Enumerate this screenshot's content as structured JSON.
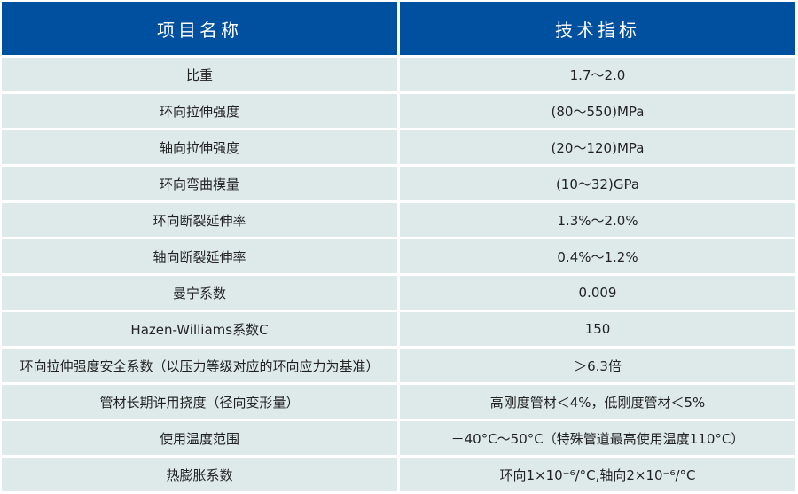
{
  "header": {
    "col1": "项目名称",
    "col2": "技术指标"
  },
  "rows": [
    {
      "name": "比重",
      "value": "1.7～2.0"
    },
    {
      "name": "环向拉伸强度",
      "value": "(80～550)MPa"
    },
    {
      "name": "轴向拉伸强度",
      "value": "(20～120)MPa"
    },
    {
      "name": "环向弯曲模量",
      "value": "(10～32)GPa"
    },
    {
      "name": "环向断裂延伸率",
      "value": "1.3%～2.0%"
    },
    {
      "name": "轴向断裂延伸率",
      "value": "0.4%～1.2%"
    },
    {
      "name": "曼宁系数",
      "value": "0.009"
    },
    {
      "name": "Hazen-Williams系数C",
      "value": "150"
    },
    {
      "name": "环向拉伸强度安全系数（以压力等级对应的环向应力为基准）",
      "value": "＞6.3倍"
    },
    {
      "name": "管材长期许用挠度（径向变形量）",
      "value": "高刚度管材＜4%，低刚度管材＜5%"
    },
    {
      "name": "使用温度范围",
      "value": "－40°C～50°C（特殊管道最高使用温度110°C）"
    },
    {
      "name": "热膨胀系数",
      "value": "环向1×10⁻⁶/°C,轴向2×10⁻⁶/°C"
    }
  ],
  "colors": {
    "header_bg": "#0050a0",
    "row_bg": "#deeaea"
  }
}
